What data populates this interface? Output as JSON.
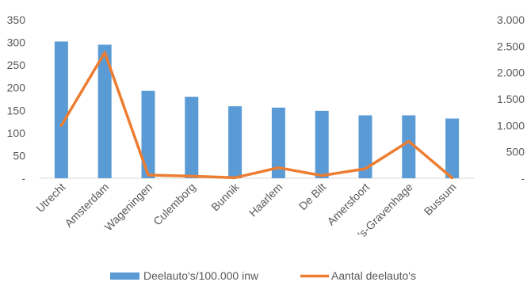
{
  "chart_data": {
    "type": "bar",
    "categories": [
      "Utrecht",
      "Amsterdam",
      "Wageningen",
      "Culemborg",
      "Bunnik",
      "Haarlem",
      "De Bilt",
      "Amersfoort",
      "'s-Gravenhage",
      "Bussum"
    ],
    "series": [
      {
        "name": "Deelauto's/100.000 inw",
        "type": "bar",
        "axis": "left",
        "color": "#5b9bd5",
        "values": [
          302,
          295,
          193,
          180,
          159,
          156,
          149,
          139,
          139,
          132
        ]
      },
      {
        "name": "Aantal deelauto's",
        "type": "line",
        "axis": "right",
        "color": "#ed7d31",
        "values": [
          1000,
          2380,
          60,
          40,
          10,
          200,
          50,
          180,
          700,
          5
        ]
      }
    ],
    "y_left": {
      "ylim": [
        0,
        350
      ],
      "ticks": [
        0,
        50,
        100,
        150,
        200,
        250,
        300,
        350
      ],
      "tick_labels": [
        "-",
        "50",
        "100",
        "150",
        "200",
        "250",
        "300",
        "350"
      ]
    },
    "y_right": {
      "ylim": [
        0,
        3000
      ],
      "ticks": [
        0,
        500,
        1000,
        1500,
        2000,
        2500,
        3000
      ],
      "tick_labels": [
        "-",
        "500",
        "1.000",
        "1.500",
        "2.000",
        "2.500",
        "3.000"
      ]
    },
    "grid": false,
    "legend_position": "bottom"
  }
}
